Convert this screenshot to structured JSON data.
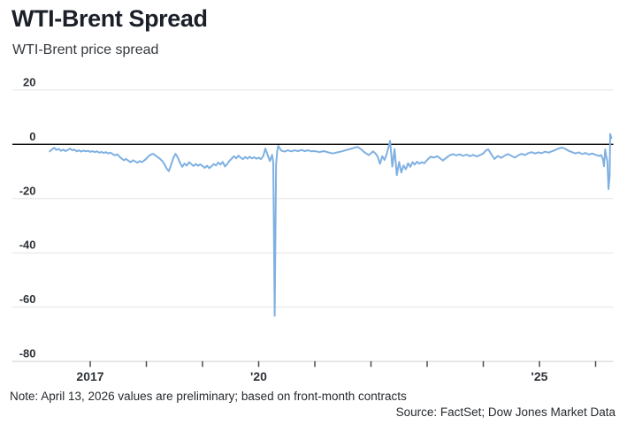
{
  "header": {
    "title": "WTI-Brent Spread",
    "subtitle": "WTI-Brent price spread"
  },
  "footer": {
    "note": "Note: April 13, 2026 values are preliminary; based on front-month contracts",
    "source": "Source: FactSet; Dow Jones Market Data"
  },
  "colors": {
    "line": "#7fb0e2",
    "zero_line": "#000000",
    "grid": "#e4e4e4",
    "axis": "#cfcfcf",
    "tick": "#4a4a4a",
    "title_text": "#1b1f27",
    "label_text": "#2e3237"
  },
  "chart_data": {
    "type": "line",
    "title": "WTI-Brent Spread",
    "subtitle": "WTI-Brent price spread",
    "ylabel": "",
    "xlabel": "",
    "ylim": [
      -80,
      20
    ],
    "yticks": [
      20,
      0,
      -20,
      -40,
      -60,
      -80
    ],
    "ytick_labels": [
      "20",
      "0",
      "-20",
      "-40",
      "-60",
      "-80"
    ],
    "xlim": [
      2016.2,
      2026.35
    ],
    "xticks": [
      {
        "x": 2017,
        "label": "2017"
      },
      {
        "x": 2018,
        "label": ""
      },
      {
        "x": 2019,
        "label": ""
      },
      {
        "x": 2020,
        "label": "'20"
      },
      {
        "x": 2021,
        "label": ""
      },
      {
        "x": 2022,
        "label": ""
      },
      {
        "x": 2023,
        "label": ""
      },
      {
        "x": 2024,
        "label": ""
      },
      {
        "x": 2025,
        "label": "'25"
      },
      {
        "x": 2026,
        "label": ""
      }
    ],
    "grid": "horizontal",
    "legend": "none",
    "zero_baseline": true,
    "series": [
      {
        "name": "WTI-Brent price spread",
        "points": [
          [
            2016.28,
            -2.6
          ],
          [
            2016.32,
            -1.9
          ],
          [
            2016.36,
            -1.3
          ],
          [
            2016.4,
            -2.1
          ],
          [
            2016.44,
            -1.7
          ],
          [
            2016.48,
            -2.4
          ],
          [
            2016.52,
            -2.0
          ],
          [
            2016.56,
            -2.5
          ],
          [
            2016.6,
            -2.1
          ],
          [
            2016.64,
            -1.6
          ],
          [
            2016.68,
            -2.2
          ],
          [
            2016.72,
            -2.0
          ],
          [
            2016.76,
            -2.6
          ],
          [
            2016.8,
            -2.2
          ],
          [
            2016.84,
            -2.7
          ],
          [
            2016.88,
            -2.3
          ],
          [
            2016.92,
            -2.6
          ],
          [
            2016.96,
            -2.4
          ],
          [
            2017.0,
            -2.8
          ],
          [
            2017.04,
            -2.5
          ],
          [
            2017.08,
            -2.9
          ],
          [
            2017.12,
            -2.6
          ],
          [
            2017.16,
            -3.1
          ],
          [
            2017.2,
            -2.8
          ],
          [
            2017.24,
            -3.2
          ],
          [
            2017.28,
            -2.9
          ],
          [
            2017.32,
            -3.4
          ],
          [
            2017.36,
            -3.1
          ],
          [
            2017.4,
            -3.6
          ],
          [
            2017.44,
            -4.1
          ],
          [
            2017.48,
            -3.7
          ],
          [
            2017.52,
            -4.5
          ],
          [
            2017.56,
            -5.3
          ],
          [
            2017.6,
            -5.9
          ],
          [
            2017.64,
            -5.4
          ],
          [
            2017.68,
            -6.1
          ],
          [
            2017.72,
            -6.6
          ],
          [
            2017.76,
            -5.9
          ],
          [
            2017.8,
            -6.3
          ],
          [
            2017.84,
            -6.8
          ],
          [
            2017.88,
            -6.2
          ],
          [
            2017.92,
            -6.6
          ],
          [
            2017.96,
            -6.0
          ],
          [
            2018.0,
            -5.3
          ],
          [
            2018.04,
            -4.4
          ],
          [
            2018.08,
            -3.8
          ],
          [
            2018.12,
            -3.5
          ],
          [
            2018.16,
            -4.1
          ],
          [
            2018.2,
            -4.7
          ],
          [
            2018.24,
            -5.3
          ],
          [
            2018.28,
            -6.1
          ],
          [
            2018.32,
            -7.3
          ],
          [
            2018.36,
            -8.9
          ],
          [
            2018.4,
            -9.9
          ],
          [
            2018.44,
            -7.6
          ],
          [
            2018.48,
            -5.1
          ],
          [
            2018.52,
            -3.5
          ],
          [
            2018.56,
            -4.9
          ],
          [
            2018.6,
            -6.9
          ],
          [
            2018.64,
            -8.3
          ],
          [
            2018.68,
            -7.1
          ],
          [
            2018.72,
            -7.9
          ],
          [
            2018.76,
            -6.6
          ],
          [
            2018.8,
            -7.3
          ],
          [
            2018.84,
            -8.0
          ],
          [
            2018.88,
            -7.3
          ],
          [
            2018.92,
            -7.9
          ],
          [
            2018.96,
            -7.4
          ],
          [
            2019.0,
            -8.0
          ],
          [
            2019.04,
            -8.7
          ],
          [
            2019.08,
            -7.9
          ],
          [
            2019.12,
            -8.8
          ],
          [
            2019.16,
            -8.1
          ],
          [
            2019.2,
            -7.3
          ],
          [
            2019.24,
            -7.8
          ],
          [
            2019.28,
            -6.7
          ],
          [
            2019.32,
            -7.5
          ],
          [
            2019.36,
            -6.5
          ],
          [
            2019.4,
            -8.2
          ],
          [
            2019.44,
            -7.3
          ],
          [
            2019.48,
            -6.1
          ],
          [
            2019.52,
            -5.3
          ],
          [
            2019.56,
            -4.4
          ],
          [
            2019.6,
            -5.2
          ],
          [
            2019.64,
            -4.2
          ],
          [
            2019.68,
            -4.9
          ],
          [
            2019.72,
            -5.5
          ],
          [
            2019.76,
            -4.7
          ],
          [
            2019.8,
            -5.3
          ],
          [
            2019.84,
            -4.6
          ],
          [
            2019.88,
            -5.2
          ],
          [
            2019.92,
            -4.8
          ],
          [
            2019.96,
            -5.3
          ],
          [
            2020.0,
            -4.9
          ],
          [
            2020.04,
            -5.5
          ],
          [
            2020.08,
            -4.4
          ],
          [
            2020.12,
            -1.6
          ],
          [
            2020.16,
            -4.0
          ],
          [
            2020.2,
            -6.2
          ],
          [
            2020.24,
            -3.9
          ],
          [
            2020.26,
            -6.6
          ],
          [
            2020.285,
            -63.2
          ],
          [
            2020.31,
            -7.5
          ],
          [
            2020.33,
            -2.4
          ],
          [
            2020.35,
            -0.6
          ],
          [
            2020.4,
            -2.3
          ],
          [
            2020.46,
            -2.7
          ],
          [
            2020.52,
            -2.2
          ],
          [
            2020.58,
            -2.6
          ],
          [
            2020.64,
            -2.2
          ],
          [
            2020.7,
            -2.5
          ],
          [
            2020.76,
            -2.1
          ],
          [
            2020.82,
            -2.5
          ],
          [
            2020.88,
            -2.2
          ],
          [
            2020.94,
            -2.6
          ],
          [
            2021.0,
            -2.5
          ],
          [
            2021.08,
            -2.9
          ],
          [
            2021.16,
            -2.5
          ],
          [
            2021.24,
            -3.0
          ],
          [
            2021.32,
            -3.4
          ],
          [
            2021.4,
            -3.0
          ],
          [
            2021.48,
            -2.6
          ],
          [
            2021.56,
            -2.1
          ],
          [
            2021.64,
            -1.7
          ],
          [
            2021.7,
            -1.3
          ],
          [
            2021.76,
            -1.0
          ],
          [
            2021.82,
            -1.8
          ],
          [
            2021.88,
            -2.9
          ],
          [
            2021.96,
            -4.0
          ],
          [
            2022.04,
            -2.6
          ],
          [
            2022.08,
            -3.4
          ],
          [
            2022.12,
            -4.6
          ],
          [
            2022.16,
            -7.2
          ],
          [
            2022.2,
            -4.4
          ],
          [
            2022.24,
            -5.8
          ],
          [
            2022.28,
            -3.6
          ],
          [
            2022.32,
            -0.5
          ],
          [
            2022.34,
            1.3
          ],
          [
            2022.38,
            -8.2
          ],
          [
            2022.42,
            -1.8
          ],
          [
            2022.46,
            -11.4
          ],
          [
            2022.5,
            -6.5
          ],
          [
            2022.54,
            -10.4
          ],
          [
            2022.58,
            -7.8
          ],
          [
            2022.62,
            -9.2
          ],
          [
            2022.66,
            -7.0
          ],
          [
            2022.7,
            -8.3
          ],
          [
            2022.74,
            -6.6
          ],
          [
            2022.78,
            -7.5
          ],
          [
            2022.82,
            -6.4
          ],
          [
            2022.86,
            -7.2
          ],
          [
            2022.9,
            -6.6
          ],
          [
            2022.95,
            -7.0
          ],
          [
            2023.0,
            -5.8
          ],
          [
            2023.06,
            -4.6
          ],
          [
            2023.12,
            -4.9
          ],
          [
            2023.18,
            -4.4
          ],
          [
            2023.24,
            -5.3
          ],
          [
            2023.28,
            -6.0
          ],
          [
            2023.34,
            -5.0
          ],
          [
            2023.4,
            -4.1
          ],
          [
            2023.46,
            -3.6
          ],
          [
            2023.52,
            -4.1
          ],
          [
            2023.58,
            -3.7
          ],
          [
            2023.64,
            -4.3
          ],
          [
            2023.7,
            -3.8
          ],
          [
            2023.76,
            -4.4
          ],
          [
            2023.82,
            -3.9
          ],
          [
            2023.88,
            -4.5
          ],
          [
            2023.94,
            -4.0
          ],
          [
            2024.0,
            -3.4
          ],
          [
            2024.05,
            -2.2
          ],
          [
            2024.09,
            -1.9
          ],
          [
            2024.14,
            -3.6
          ],
          [
            2024.2,
            -5.4
          ],
          [
            2024.26,
            -4.3
          ],
          [
            2024.32,
            -5.0
          ],
          [
            2024.38,
            -4.2
          ],
          [
            2024.44,
            -3.6
          ],
          [
            2024.5,
            -4.3
          ],
          [
            2024.56,
            -4.9
          ],
          [
            2024.62,
            -4.1
          ],
          [
            2024.68,
            -3.5
          ],
          [
            2024.74,
            -4.0
          ],
          [
            2024.8,
            -3.3
          ],
          [
            2024.86,
            -2.9
          ],
          [
            2024.92,
            -3.4
          ],
          [
            2024.98,
            -3.0
          ],
          [
            2025.04,
            -3.3
          ],
          [
            2025.1,
            -2.7
          ],
          [
            2025.16,
            -3.1
          ],
          [
            2025.22,
            -2.6
          ],
          [
            2025.28,
            -2.1
          ],
          [
            2025.34,
            -1.6
          ],
          [
            2025.4,
            -1.2
          ],
          [
            2025.46,
            -1.7
          ],
          [
            2025.52,
            -2.4
          ],
          [
            2025.58,
            -2.9
          ],
          [
            2025.64,
            -3.4
          ],
          [
            2025.7,
            -3.0
          ],
          [
            2025.76,
            -3.6
          ],
          [
            2025.82,
            -3.2
          ],
          [
            2025.88,
            -3.8
          ],
          [
            2025.94,
            -3.4
          ],
          [
            2026.0,
            -3.9
          ],
          [
            2026.06,
            -4.3
          ],
          [
            2026.1,
            -4.0
          ],
          [
            2026.13,
            -5.6
          ],
          [
            2026.15,
            -8.1
          ],
          [
            2026.17,
            -1.9
          ],
          [
            2026.19,
            -4.6
          ],
          [
            2026.21,
            -6.2
          ],
          [
            2026.23,
            -16.5
          ],
          [
            2026.25,
            -11.5
          ],
          [
            2026.26,
            3.8
          ],
          [
            2026.28,
            2.2
          ]
        ]
      }
    ]
  }
}
